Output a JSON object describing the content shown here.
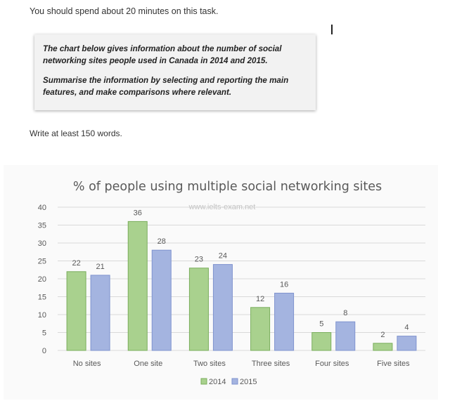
{
  "task": {
    "instruction": "You should spend about 20 minutes on this task.",
    "prompt_1": "The chart below gives information about the number of social networking sites people used in Canada in 2014 and 2015.",
    "prompt_2": "Summarise the information by selecting and reporting the main features, and make comparisons where relevant.",
    "word_count_note": "Write at least 150 words."
  },
  "chart_data": {
    "type": "bar",
    "title": "% of people using multiple social networking sites",
    "watermark": "www.ielts-exam.net",
    "categories": [
      "No sites",
      "One site",
      "Two sites",
      "Three sites",
      "Four sites",
      "Five sites"
    ],
    "series": [
      {
        "name": "2014",
        "values": [
          22,
          36,
          23,
          12,
          5,
          2
        ],
        "color": "#a9d18e"
      },
      {
        "name": "2015",
        "values": [
          21,
          28,
          24,
          16,
          8,
          4
        ],
        "color": "#a4b4e0"
      }
    ],
    "ylim": [
      0,
      40
    ],
    "yticks": [
      0,
      5,
      10,
      15,
      20,
      25,
      30,
      35,
      40
    ],
    "grid": true,
    "legend_position": "bottom",
    "colors": {
      "grid": "#d9d9d9",
      "text": "#595959",
      "stroke_2014": "#7aae5c",
      "stroke_2015": "#7f93cf"
    }
  }
}
